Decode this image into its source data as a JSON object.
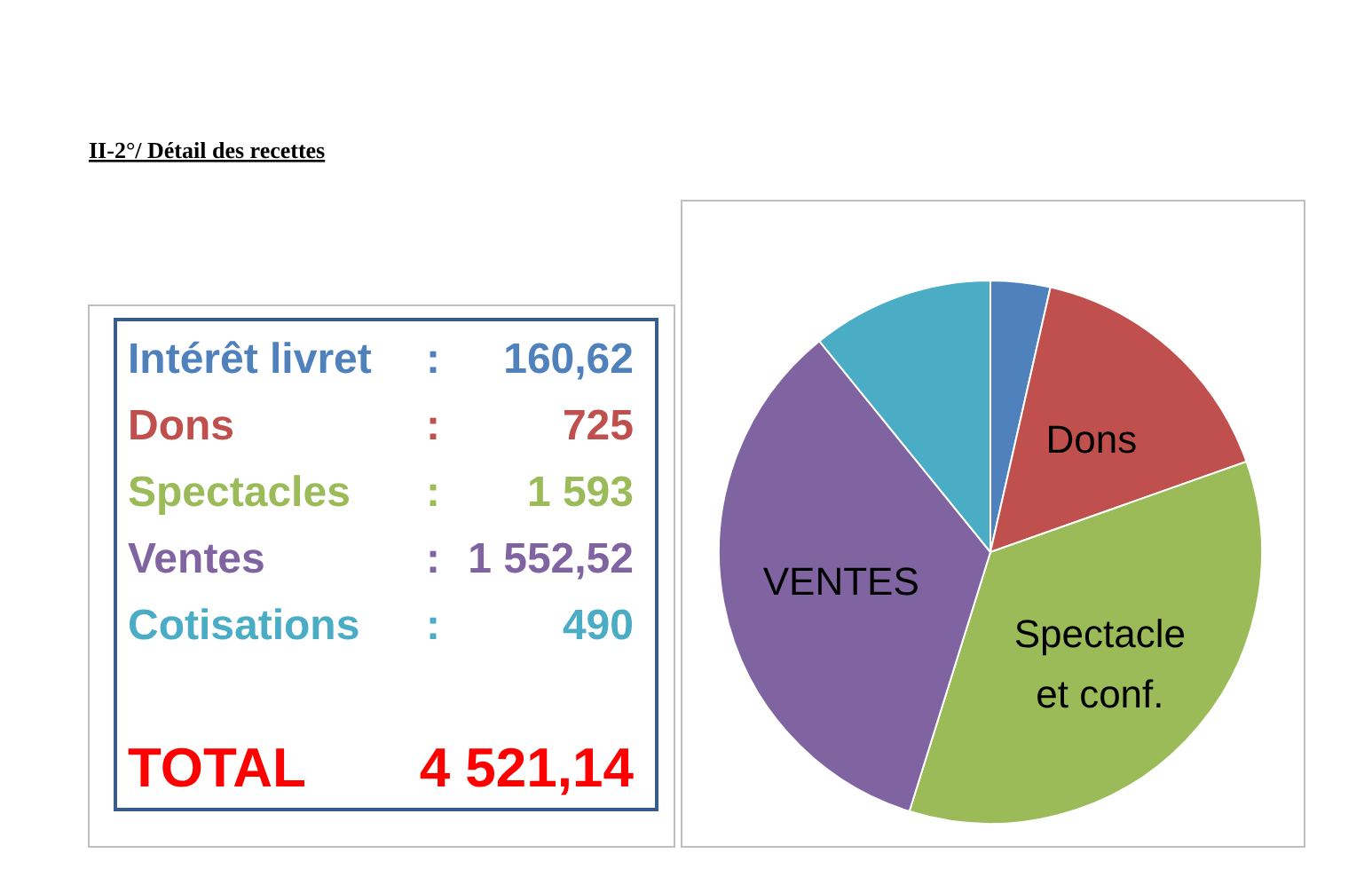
{
  "chart_data": [
    {
      "type": "other",
      "title": "II-2°/ Détail des recettes",
      "categories": [
        "Intérêt livret",
        "Dons",
        "Spectacles",
        "Ventes",
        "Cotisations",
        "TOTAL"
      ],
      "values": [
        160.62,
        725,
        1593,
        1552.52,
        490,
        4521.14
      ],
      "value_labels": [
        "160,62",
        "725",
        "1 593",
        "1 552,52",
        "490",
        "4 521,14"
      ],
      "annotations": [
        ":",
        ":",
        ":",
        ":",
        ":"
      ],
      "colors": [
        "#4f81bd",
        "#c0504d",
        "#9bbb59",
        "#8064a2",
        "#4bacc6",
        "#ff0000"
      ]
    },
    {
      "type": "pie",
      "categories": [
        null,
        "Dons",
        "Spectacle et conf.",
        "VENTES",
        null
      ],
      "values": [
        3.55,
        16.04,
        35.23,
        34.34,
        10.84
      ],
      "colors": [
        "#4f81bd",
        "#c0504d",
        "#9bbb59",
        "#8064a2",
        "#4bacc6"
      ]
    }
  ]
}
